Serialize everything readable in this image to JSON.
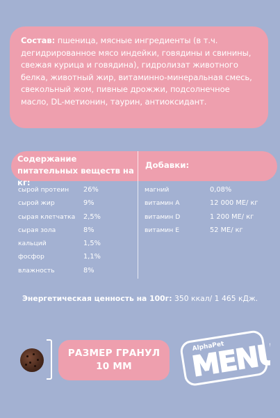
{
  "composition": {
    "label": "Состав:",
    "text": " пшеница, мясные ингредиенты (в т.ч. дегидрированное мясо индейки, говядины и свинины, свежая курица и говядина), гидролизат животного белка, животный жир, витаминно-минеральная смесь, свекольный жом, пивные дрожжи, подсолнечное масло, DL-метионин, таурин, антиоксидант."
  },
  "nutrition": {
    "heading": "Содержание питательных веществ на кг:",
    "rows": [
      {
        "name": "сырой протеин",
        "value": "26%"
      },
      {
        "name": "сырой жир",
        "value": "9%"
      },
      {
        "name": "сырая клетчатка",
        "value": "2,5%"
      },
      {
        "name": "сырая зола",
        "value": "8%"
      },
      {
        "name": "кальций",
        "value": "1,5%"
      },
      {
        "name": "фосфор",
        "value": "1,1%"
      },
      {
        "name": "влажность",
        "value": "8%"
      }
    ]
  },
  "additives": {
    "heading": "Добавки:",
    "rows": [
      {
        "name": "магний",
        "value": "0,08%"
      },
      {
        "name": "витамин А",
        "value": "12 000 МЕ/ кг"
      },
      {
        "name": "витамин D",
        "value": "1 200 МЕ/ кг"
      },
      {
        "name": "витамин Е",
        "value": "52 МЕ/ кг"
      }
    ]
  },
  "energy": {
    "label": "Энергетическая ценность на 100г:",
    "value": " 350 ккал/ 1 465 кДж."
  },
  "granule": {
    "title": "РАЗМЕР ГРАНУЛ",
    "size": "10 ММ"
  },
  "logo": {
    "brand": "AlphaPet",
    "word": "MENU"
  },
  "colors": {
    "background": "#a3b1d2",
    "pink": "#ee9fae",
    "text": "#ffffff"
  }
}
